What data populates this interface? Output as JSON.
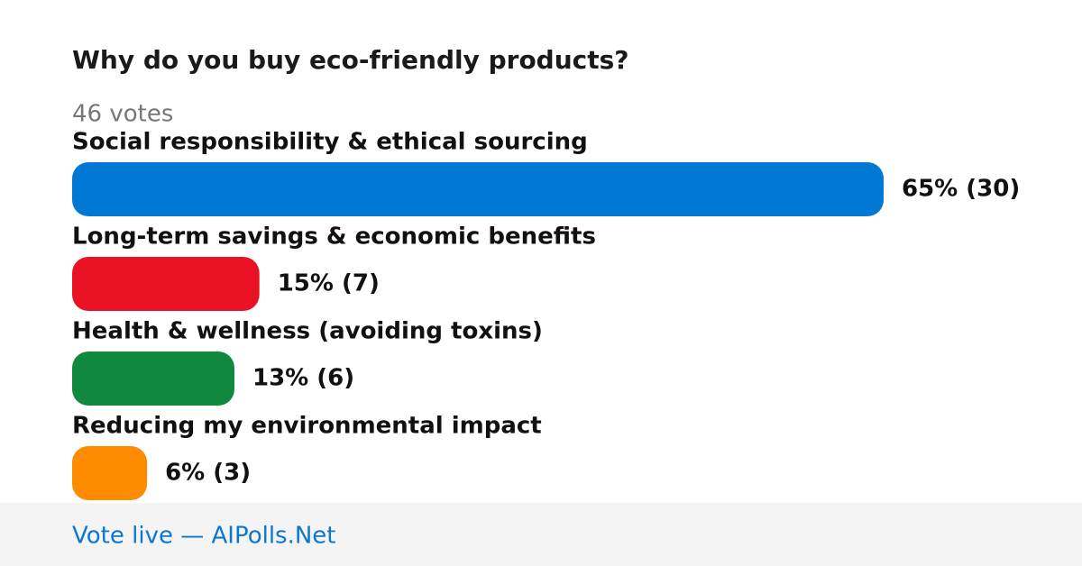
{
  "chart_data": {
    "type": "bar",
    "orientation": "horizontal",
    "title": "Why do you buy eco-friendly products?",
    "subtitle": "46 votes",
    "categories": [
      "Social responsibility & ethical sourcing",
      "Long-term savings & economic benefits",
      "Health & wellness (avoiding toxins)",
      "Reducing my environmental impact"
    ],
    "values": [
      65,
      15,
      13,
      6
    ],
    "value_labels": [
      "65% (30)",
      "15% (7)",
      "13% (6)",
      "6% (3)"
    ],
    "colors": [
      "#0078d4",
      "#e81224",
      "#10893e",
      "#ff8c00"
    ],
    "footer": "Vote live — AIPolls.Net"
  }
}
